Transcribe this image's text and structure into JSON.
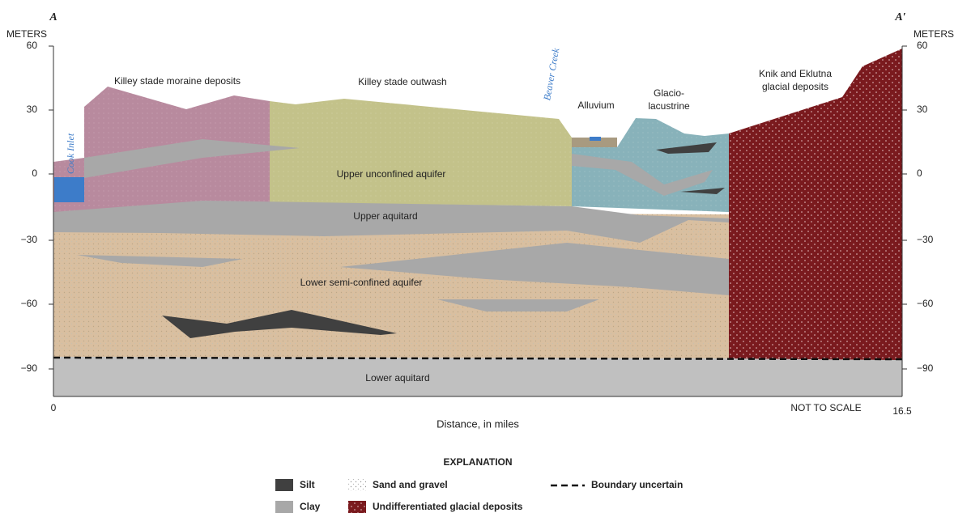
{
  "section": {
    "left_end": "A",
    "right_end": "A′"
  },
  "axes": {
    "left_unit": "METERS",
    "right_unit": "METERS",
    "left_ticks": [
      "60",
      "30",
      "0",
      "−30",
      "−60",
      "−90"
    ],
    "right_ticks": [
      "60",
      "30",
      "0",
      "−30",
      "−60",
      "−90"
    ],
    "x_start": "0",
    "x_end": "16.5",
    "x_note": "NOT TO SCALE",
    "x_title": "Distance, in miles"
  },
  "features": {
    "cook_inlet": "Cook Inlet",
    "beaver_creek": "Beaver Creek"
  },
  "deposits": {
    "moraine": "Killey stade moraine deposits",
    "outwash": "Killey stade outwash",
    "alluvium": "Alluvium",
    "glaciolacustrine": [
      "Glacio-",
      "lacustrine"
    ],
    "knik": [
      "Knik and Eklutna",
      "glacial deposits"
    ]
  },
  "units": {
    "upper_unconfined": "Upper unconfined aquifer",
    "upper_aquitard": "Upper aquitard",
    "lower_semi_confined": "Lower semi-confined aquifer",
    "lower_aquitard": "Lower aquitard"
  },
  "legend": {
    "title": "EXPLANATION",
    "items": [
      "Silt",
      "Clay",
      "Sand and gravel",
      "Undifferentiated glacial deposits",
      "Boundary uncertain"
    ]
  }
}
